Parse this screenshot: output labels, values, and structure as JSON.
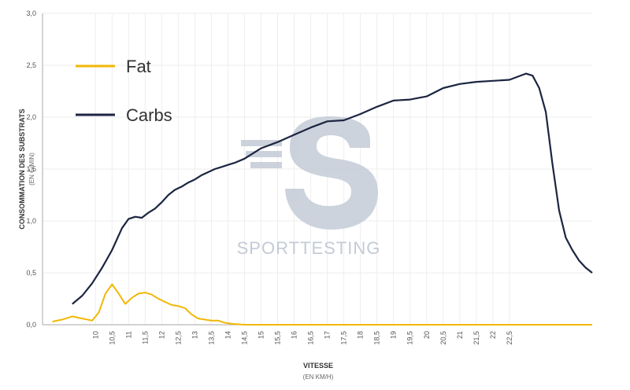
{
  "watermark": {
    "text": "SPORTTESTING",
    "color": "#c3cbd6"
  },
  "colors": {
    "fat": "#f2b705",
    "carbs": "#1c2541",
    "grid": "#eeeeee",
    "axis": "#999999"
  },
  "chart_data": {
    "type": "line",
    "xlabel": "VITESSE",
    "xunit": "(EN KM/H)",
    "ylabel": "CONSOMMATION DES SUBSTRATS",
    "yunit": "(EN G/MIN)",
    "ylim": [
      0,
      3.0
    ],
    "yticks": [
      "0,0",
      "0,5",
      "1,0",
      "1,5",
      "2,0",
      "2,5",
      "3,0"
    ],
    "xlim": [
      8.4,
      25.0
    ],
    "xticks": [
      "10",
      "10,5",
      "11",
      "11,5",
      "12",
      "12,5",
      "13",
      "13,5",
      "14",
      "14,5",
      "15",
      "15,5",
      "16",
      "16,5",
      "17",
      "17,5",
      "18",
      "18,5",
      "19",
      "19,5",
      "20",
      "20,5",
      "21",
      "21,5",
      "22",
      "22,5"
    ],
    "grid": true,
    "legend_position": "top-left",
    "series": [
      {
        "name": "Fat",
        "color": "#f2b705",
        "x": [
          8.7,
          9.0,
          9.3,
          9.6,
          9.9,
          10.1,
          10.3,
          10.5,
          10.7,
          10.9,
          11.1,
          11.3,
          11.5,
          11.7,
          11.9,
          12.1,
          12.3,
          12.5,
          12.7,
          12.9,
          13.1,
          13.3,
          13.5,
          13.7,
          13.9,
          14.1,
          14.5,
          15,
          16,
          17,
          18,
          19,
          20,
          21,
          22,
          23,
          24,
          25.0
        ],
        "y": [
          0.03,
          0.05,
          0.08,
          0.06,
          0.04,
          0.12,
          0.3,
          0.39,
          0.3,
          0.2,
          0.26,
          0.3,
          0.31,
          0.29,
          0.25,
          0.22,
          0.19,
          0.18,
          0.16,
          0.1,
          0.06,
          0.05,
          0.04,
          0.04,
          0.02,
          0.01,
          0.0,
          0.0,
          0.0,
          0.0,
          0.0,
          0.0,
          0.0,
          0.0,
          0.0,
          0.0,
          0.0,
          0.0
        ]
      },
      {
        "name": "Carbs",
        "color": "#1c2541",
        "x": [
          9.3,
          9.6,
          9.9,
          10.2,
          10.5,
          10.8,
          11.0,
          11.2,
          11.4,
          11.6,
          11.8,
          12.0,
          12.2,
          12.4,
          12.6,
          12.8,
          13.0,
          13.2,
          13.4,
          13.6,
          13.8,
          14.0,
          14.2,
          14.5,
          15.0,
          15.5,
          16.0,
          16.5,
          17.0,
          17.5,
          18.0,
          18.5,
          19.0,
          19.5,
          20.0,
          20.5,
          21.0,
          21.5,
          22.0,
          22.5,
          23.0,
          23.2,
          23.4,
          23.6,
          23.8,
          24.0,
          24.2,
          24.4,
          24.6,
          24.8,
          25.0
        ],
        "y": [
          0.2,
          0.28,
          0.4,
          0.55,
          0.72,
          0.93,
          1.02,
          1.04,
          1.03,
          1.08,
          1.12,
          1.18,
          1.25,
          1.3,
          1.33,
          1.37,
          1.4,
          1.44,
          1.47,
          1.5,
          1.52,
          1.54,
          1.56,
          1.6,
          1.7,
          1.76,
          1.83,
          1.9,
          1.96,
          1.97,
          2.03,
          2.1,
          2.16,
          2.17,
          2.2,
          2.28,
          2.32,
          2.34,
          2.35,
          2.36,
          2.42,
          2.4,
          2.28,
          2.05,
          1.55,
          1.1,
          0.84,
          0.72,
          0.62,
          0.55,
          0.5
        ]
      }
    ]
  }
}
